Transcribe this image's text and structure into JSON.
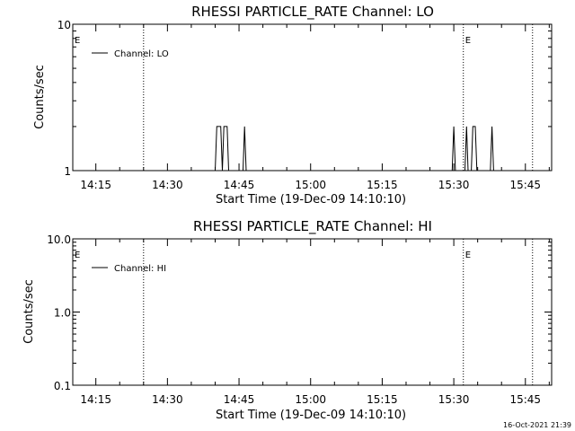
{
  "footer": {
    "timestamp": "16-Oct-2021 21:39"
  },
  "chart_data": [
    {
      "type": "line",
      "title": "RHESSI PARTICLE_RATE Channel: LO",
      "xlabel": "Start Time (19-Dec-09 14:10:10)",
      "ylabel": "Counts/sec",
      "y_scale": "log",
      "ylim": [
        1,
        10
      ],
      "y_ticks": [
        1,
        10
      ],
      "y_tick_labels": [
        "1",
        "10"
      ],
      "xlim": [
        "14:10:10",
        "15:50:30"
      ],
      "x_ticks": [
        "14:15",
        "14:30",
        "14:45",
        "15:00",
        "15:15",
        "15:30",
        "15:45"
      ],
      "legend": {
        "position": "top-left",
        "entries": [
          "Channel: LO"
        ]
      },
      "grid": false,
      "event_lines": [
        {
          "time": "14:25:00",
          "label": ""
        },
        {
          "time": "15:32:00",
          "label": "E"
        },
        {
          "time": "15:46:30",
          "label": ""
        }
      ],
      "edge_marker": "E",
      "series": [
        {
          "name": "Channel: LO",
          "points": [
            [
              "14:40:00",
              1
            ],
            [
              "14:40:20",
              2
            ],
            [
              "14:41:10",
              2
            ],
            [
              "14:41:30",
              1
            ],
            [
              "14:41:50",
              2
            ],
            [
              "14:42:30",
              2
            ],
            [
              "14:42:50",
              1
            ],
            [
              "14:45:50",
              1
            ],
            [
              "14:46:10",
              2
            ],
            [
              "14:46:30",
              1
            ],
            [
              "15:29:40",
              1
            ],
            [
              "15:30:00",
              2
            ],
            [
              "15:30:20",
              1
            ],
            [
              "15:32:20",
              1
            ],
            [
              "15:32:40",
              2
            ],
            [
              "15:33:00",
              1
            ],
            [
              "15:33:40",
              1
            ],
            [
              "15:34:00",
              2
            ],
            [
              "15:34:30",
              2
            ],
            [
              "15:34:50",
              1
            ],
            [
              "15:37:40",
              1
            ],
            [
              "15:38:00",
              2
            ],
            [
              "15:38:20",
              1
            ]
          ]
        }
      ]
    },
    {
      "type": "line",
      "title": "RHESSI PARTICLE_RATE Channel: HI",
      "xlabel": "Start Time (19-Dec-09 14:10:10)",
      "ylabel": "Counts/sec",
      "y_scale": "log",
      "ylim": [
        0.1,
        10
      ],
      "y_ticks": [
        0.1,
        1,
        10
      ],
      "y_tick_labels": [
        "0.1",
        "1.0",
        "10.0"
      ],
      "xlim": [
        "14:10:10",
        "15:50:30"
      ],
      "x_ticks": [
        "14:15",
        "14:30",
        "14:45",
        "15:00",
        "15:15",
        "15:30",
        "15:45"
      ],
      "legend": {
        "position": "top-left",
        "entries": [
          "Channel: HI"
        ]
      },
      "grid": false,
      "event_lines": [
        {
          "time": "14:25:00",
          "label": ""
        },
        {
          "time": "15:32:00",
          "label": "E"
        },
        {
          "time": "15:46:30",
          "label": ""
        }
      ],
      "edge_marker": "E",
      "series": [
        {
          "name": "Channel: HI",
          "points": []
        }
      ]
    }
  ]
}
